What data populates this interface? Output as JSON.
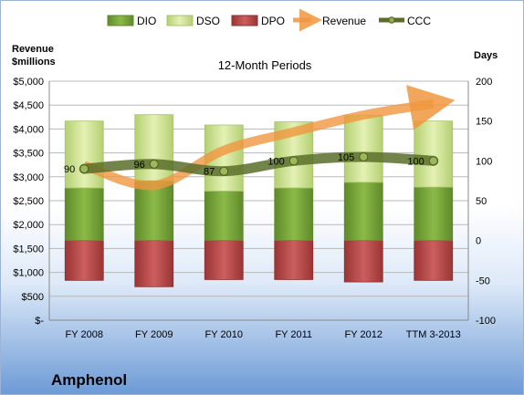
{
  "company": "Amphenol",
  "colors": {
    "dio": "#77a33a",
    "dso": "#c9e08a",
    "dpo": "#b84a4a",
    "revenue": "#f0963e",
    "ccc": "#5a6e2a"
  },
  "chart_data": {
    "type": "bar",
    "title": "12-Month Periods",
    "left_axis_title": "Revenue\n$millions",
    "right_axis_title": "Days",
    "categories": [
      "FY 2008",
      "FY 2009",
      "FY 2010",
      "FY 2011",
      "FY 2012",
      "TTM 3-2013"
    ],
    "left_ylim": [
      0,
      5000
    ],
    "left_ticks": [
      "$-",
      "$500",
      "$1,000",
      "$1,500",
      "$2,000",
      "$2,500",
      "$3,000",
      "$3,500",
      "$4,000",
      "$4,500",
      "$5,000"
    ],
    "right_ylim": [
      -100,
      200
    ],
    "right_ticks": [
      "-100",
      "-50",
      "0",
      "50",
      "100",
      "150",
      "200"
    ],
    "legend": [
      "DIO",
      "DSO",
      "DPO",
      "Revenue",
      "CCC"
    ],
    "legend_position": "top",
    "gridlines": true,
    "series": [
      {
        "name": "DIO",
        "axis": "days",
        "values": [
          66,
          75,
          62,
          66,
          73,
          67
        ]
      },
      {
        "name": "DSO",
        "axis": "days",
        "values": [
          84,
          83,
          83,
          83,
          84,
          83
        ]
      },
      {
        "name": "DPO",
        "axis": "days",
        "values": [
          -50,
          -58,
          -49,
          -49,
          -52,
          -50
        ]
      },
      {
        "name": "Revenue",
        "axis": "revenue",
        "values": [
          3236,
          2820,
          3554,
          3940,
          4292,
          4530
        ]
      },
      {
        "name": "CCC",
        "axis": "days",
        "values": [
          90,
          96,
          87,
          100,
          105,
          100
        ],
        "labels": [
          "90",
          "96",
          "87",
          "100",
          "105",
          "100"
        ]
      }
    ]
  }
}
